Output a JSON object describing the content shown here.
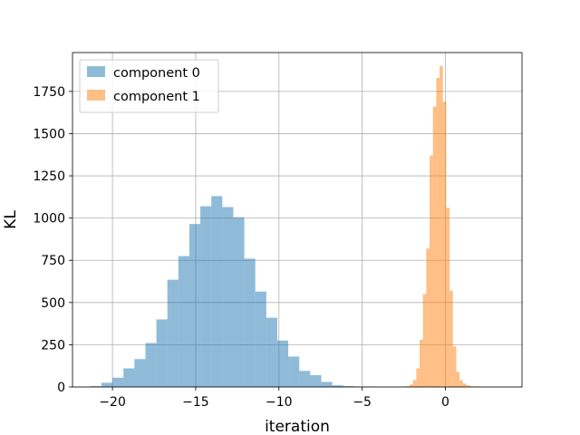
{
  "chart_data": {
    "type": "histogram",
    "title": "",
    "xlabel": "iteration",
    "ylabel": "KL",
    "xlim": [
      -22.4,
      4.6
    ],
    "ylim": [
      0,
      1980
    ],
    "xticks": [
      -20,
      -15,
      -10,
      -5,
      0
    ],
    "yticks": [
      0,
      250,
      500,
      750,
      1000,
      1250,
      1500,
      1750
    ],
    "xtick_labels": [
      "−20",
      "−15",
      "−10",
      "−5",
      "0"
    ],
    "ytick_labels": [
      "0",
      "250",
      "500",
      "750",
      "1000",
      "1250",
      "1500",
      "1750"
    ],
    "grid": true,
    "legend": "upper left",
    "series": [
      {
        "name": "component 0",
        "color": "#1f77b4",
        "opacity": 0.5,
        "bin_start": -21.32,
        "bin_width": 0.66,
        "counts": [
          5,
          25,
          55,
          110,
          165,
          260,
          400,
          635,
          775,
          965,
          1070,
          1130,
          1065,
          1005,
          760,
          565,
          410,
          275,
          180,
          95,
          70,
          30,
          10,
          5,
          3,
          2
        ]
      },
      {
        "name": "component 1",
        "color": "#ff7f0e",
        "opacity": 0.5,
        "bin_start": -2.55,
        "bin_width": 0.2,
        "counts": [
          2,
          5,
          15,
          40,
          110,
          280,
          550,
          820,
          1370,
          1660,
          1830,
          1900,
          1690,
          1060,
          570,
          240,
          90,
          40,
          20,
          10,
          5,
          3
        ]
      }
    ]
  }
}
